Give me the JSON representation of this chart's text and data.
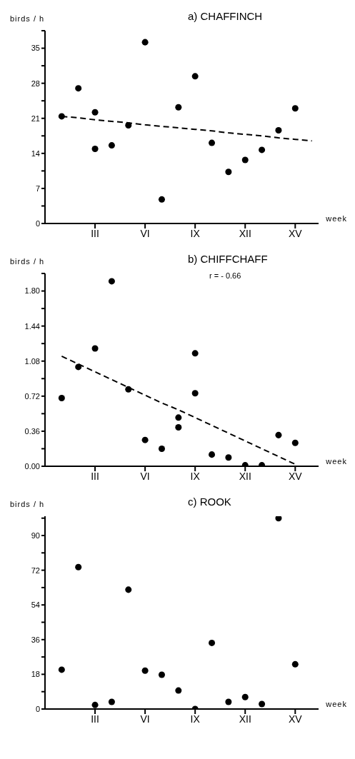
{
  "chart_data": [
    {
      "type": "scatter",
      "title": "a) CHAFFINCH",
      "xlabel": "week",
      "ylabel": "birds / h",
      "marker": "circle",
      "categories": [
        null,
        null,
        "III",
        null,
        null,
        "VI",
        null,
        null,
        "IX",
        null,
        null,
        "XII",
        null,
        null,
        "XV",
        null
      ],
      "ylim": [
        0,
        38.5
      ],
      "yticks": [
        0,
        {
          "value": 3.5,
          "label": null
        },
        7,
        {
          "value": 10.5,
          "label": null
        },
        14,
        {
          "value": 17.5,
          "label": null
        },
        21,
        {
          "value": 24.5,
          "label": null
        },
        28,
        {
          "value": 31.5,
          "label": null
        },
        35,
        {
          "value": 38.5,
          "label": null
        }
      ],
      "series": [
        {
          "color": "#000000",
          "values": [
            21.4,
            27.0,
            22.2,
            15.6,
            19.6,
            36.2,
            4.8,
            23.2,
            29.4,
            16.1,
            10.3,
            12.7,
            14.7,
            18.6,
            23.0,
            null
          ]
        },
        {
          "color": "#000000",
          "values": [
            null,
            null,
            14.9,
            null,
            null,
            null,
            null,
            null,
            null,
            null,
            null,
            null,
            null,
            null,
            null,
            null
          ]
        },
        {
          "type": "line",
          "color": "#000000",
          "marker": "none",
          "line_style": "dashed",
          "values": [
            21.4,
            21.1,
            20.7,
            20.4,
            20.1,
            19.7,
            19.4,
            19.1,
            18.8,
            18.5,
            18.1,
            17.8,
            17.5,
            17.1,
            16.8,
            16.5
          ]
        }
      ]
    },
    {
      "type": "scatter",
      "title": "b) CHIFFCHAFF",
      "xlabel": "week",
      "ylabel": "birds / h",
      "marker": "circle",
      "annotations": [
        "r = - 0.66"
      ],
      "categories": [
        null,
        null,
        "III",
        null,
        null,
        "VI",
        null,
        null,
        "IX",
        null,
        null,
        "XII",
        null,
        null,
        "XV",
        null
      ],
      "ylim": [
        0,
        1.98
      ],
      "yticks": [
        {
          "value": 0,
          "label": "0.00"
        },
        {
          "value": 0.18,
          "label": null
        },
        0.36,
        {
          "value": 0.54,
          "label": null
        },
        0.72,
        {
          "value": 0.9,
          "label": null
        },
        1.08,
        {
          "value": 1.26,
          "label": null
        },
        1.44,
        {
          "value": 1.62,
          "label": null
        },
        {
          "value": 1.8,
          "label": "1.80"
        },
        {
          "value": 1.98,
          "label": null
        }
      ],
      "series": [
        {
          "color": "#000000",
          "values": [
            0.7,
            1.02,
            1.21,
            1.9,
            0.79,
            0.27,
            0.18,
            0.5,
            1.16,
            0.12,
            0.09,
            0.01,
            0.01,
            0.32,
            0.24,
            null
          ]
        },
        {
          "color": "#000000",
          "values": [
            null,
            null,
            null,
            null,
            null,
            null,
            null,
            0.4,
            0.75,
            null,
            null,
            null,
            null,
            null,
            null,
            null
          ]
        },
        {
          "type": "line",
          "color": "#000000",
          "marker": "none",
          "line_style": "dashed",
          "values": [
            1.13,
            1.05,
            0.97,
            0.89,
            0.81,
            0.73,
            0.65,
            0.58,
            0.5,
            0.42,
            0.34,
            0.26,
            0.18,
            0.1,
            0.02,
            null
          ]
        }
      ]
    },
    {
      "type": "scatter",
      "title": "c) ROOK",
      "xlabel": "week",
      "ylabel": "birds / h",
      "marker": "circle",
      "categories": [
        null,
        null,
        "III",
        null,
        null,
        "VI",
        null,
        null,
        "IX",
        null,
        null,
        "XII",
        null,
        null,
        "XV",
        null
      ],
      "ylim": [
        0,
        100
      ],
      "yticks": [
        0,
        {
          "value": 9,
          "label": null
        },
        18,
        {
          "value": 27,
          "label": null
        },
        36,
        {
          "value": 45,
          "label": null
        },
        54,
        {
          "value": 63,
          "label": null
        },
        72,
        {
          "value": 81,
          "label": null
        },
        90,
        {
          "value": 99,
          "label": null
        }
      ],
      "series": [
        {
          "color": "#000000",
          "values": [
            20.4,
            73.6,
            2.1,
            3.7,
            61.9,
            19.9,
            17.8,
            9.6,
            0,
            34.3,
            3.7,
            6.2,
            2.6,
            99,
            23.2,
            null
          ]
        }
      ]
    }
  ]
}
